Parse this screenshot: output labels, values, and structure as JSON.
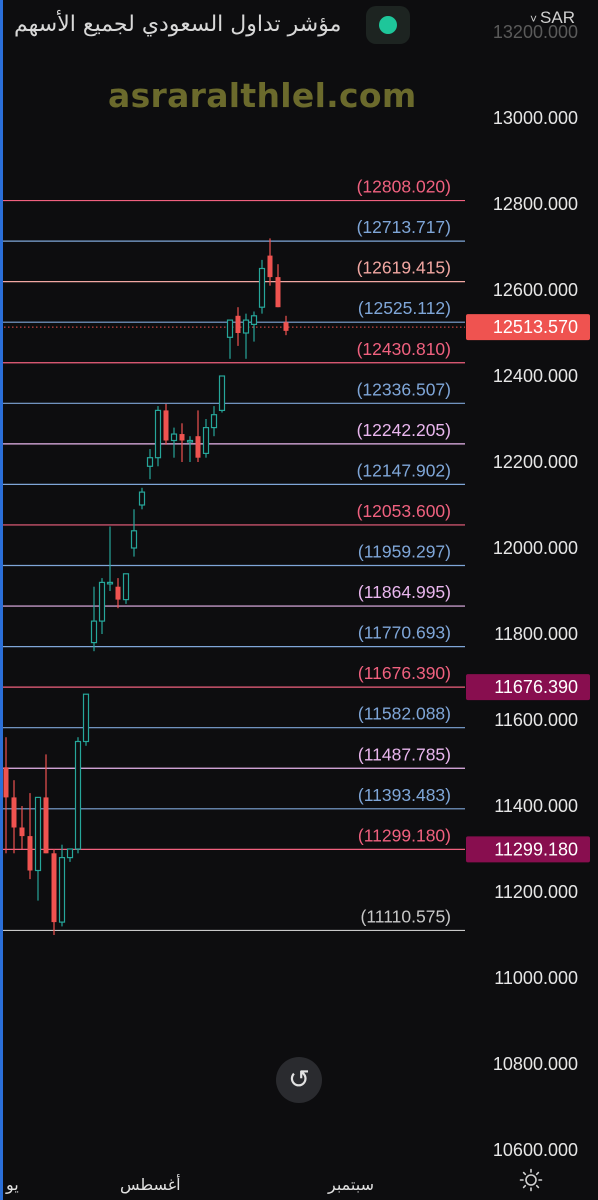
{
  "header": {
    "title": "مؤشر تداول السعودي لجميع الأسهم",
    "currency": "SAR",
    "currency_chevron": "˅",
    "status_color": "#1ec69a"
  },
  "watermark": "asraralthlel.com",
  "controls": {
    "reset_icon": "↺",
    "settings_icon": "sun-gear-icon"
  },
  "chart_data": {
    "type": "candlestick",
    "ylim": [
      10540,
      13300
    ],
    "y_ticks": [
      {
        "value": 13000,
        "label": "13000.000"
      },
      {
        "value": 12800,
        "label": "12800.000"
      },
      {
        "value": 12600,
        "label": "12600.000"
      },
      {
        "value": 12400,
        "label": "12400.000"
      },
      {
        "value": 12200,
        "label": "12200.000"
      },
      {
        "value": 12000,
        "label": "12000.000"
      },
      {
        "value": 11800,
        "label": "11800.000"
      },
      {
        "value": 11600,
        "label": "11600.000"
      },
      {
        "value": 11400,
        "label": "11400.000"
      },
      {
        "value": 11200,
        "label": "11200.000"
      },
      {
        "value": 11000,
        "label": "11000.000"
      },
      {
        "value": 10800,
        "label": "10800.000"
      },
      {
        "value": 10600,
        "label": "10600.000"
      }
    ],
    "top_partial_tick": {
      "value": 13200,
      "label": "13200.000"
    },
    "x_labels": [
      {
        "label": "يو",
        "position": "left-edge"
      },
      {
        "label": "أغسطس",
        "position": "early"
      },
      {
        "label": "سبتمبر",
        "position": "middle"
      }
    ],
    "fib_levels": [
      {
        "value": 12808.02,
        "label": "(12808.020)",
        "color": "#f0617f"
      },
      {
        "value": 12713.717,
        "label": "(12713.717)",
        "color": "#7fa6d8"
      },
      {
        "value": 12619.415,
        "label": "(12619.415)",
        "color": "#f2a7a2"
      },
      {
        "value": 12525.112,
        "label": "(12525.112)",
        "color": "#7fa6d8"
      },
      {
        "value": 12430.81,
        "label": "(12430.810)",
        "color": "#f0617f"
      },
      {
        "value": 12336.507,
        "label": "(12336.507)",
        "color": "#7fa6d8"
      },
      {
        "value": 12242.205,
        "label": "(12242.205)",
        "color": "#e9b6ee"
      },
      {
        "value": 12147.902,
        "label": "(12147.902)",
        "color": "#7fa6d8"
      },
      {
        "value": 12053.6,
        "label": "(12053.600)",
        "color": "#f0617f"
      },
      {
        "value": 11959.297,
        "label": "(11959.297)",
        "color": "#7fa6d8"
      },
      {
        "value": 11864.995,
        "label": "(11864.995)",
        "color": "#e9b6ee"
      },
      {
        "value": 11770.693,
        "label": "(11770.693)",
        "color": "#7fa6d8"
      },
      {
        "value": 11676.39,
        "label": "(11676.390)",
        "color": "#f0617f"
      },
      {
        "value": 11582.088,
        "label": "(11582.088)",
        "color": "#7fa6d8"
      },
      {
        "value": 11487.785,
        "label": "(11487.785)",
        "color": "#e9b6ee"
      },
      {
        "value": 11393.483,
        "label": "(11393.483)",
        "color": "#7fa6d8"
      },
      {
        "value": 11299.18,
        "label": "(11299.180)",
        "color": "#f0617f"
      },
      {
        "value": 11110.575,
        "label": "(11110.575)",
        "color": "#c8c8c8"
      }
    ],
    "price_badges": [
      {
        "value": 12513.57,
        "label": "12513.570",
        "color": "#ef5350"
      },
      {
        "value": 11676.39,
        "label": "11676.390",
        "color": "#880e4f"
      },
      {
        "value": 11299.18,
        "label": "11299.180",
        "color": "#880e4f"
      }
    ],
    "last_price": 12513.57,
    "up_color": "#26a69a",
    "down_color": "#ef5350",
    "candles": [
      {
        "o": 11490,
        "h": 11560,
        "l": 11290,
        "c": 11420
      },
      {
        "o": 11420,
        "h": 11460,
        "l": 11290,
        "c": 11350
      },
      {
        "o": 11350,
        "h": 11400,
        "l": 11300,
        "c": 11330
      },
      {
        "o": 11330,
        "h": 11430,
        "l": 11230,
        "c": 11250
      },
      {
        "o": 11250,
        "h": 11420,
        "l": 11180,
        "c": 11420
      },
      {
        "o": 11420,
        "h": 11520,
        "l": 11290,
        "c": 11290
      },
      {
        "o": 11290,
        "h": 11300,
        "l": 11100,
        "c": 11130
      },
      {
        "o": 11130,
        "h": 11310,
        "l": 11120,
        "c": 11280
      },
      {
        "o": 11280,
        "h": 11300,
        "l": 11270,
        "c": 11300
      },
      {
        "o": 11300,
        "h": 11560,
        "l": 11290,
        "c": 11550
      },
      {
        "o": 11550,
        "h": 11660,
        "l": 11540,
        "c": 11660
      },
      {
        "o": 11780,
        "h": 11910,
        "l": 11760,
        "c": 11830
      },
      {
        "o": 11830,
        "h": 11930,
        "l": 11800,
        "c": 11920
      },
      {
        "o": 11920,
        "h": 12050,
        "l": 11900,
        "c": 11920
      },
      {
        "o": 11910,
        "h": 11930,
        "l": 11860,
        "c": 11880
      },
      {
        "o": 11880,
        "h": 11940,
        "l": 11870,
        "c": 11940
      },
      {
        "o": 12000,
        "h": 12090,
        "l": 11980,
        "c": 12040
      },
      {
        "o": 12100,
        "h": 12140,
        "l": 12090,
        "c": 12130
      },
      {
        "o": 12190,
        "h": 12230,
        "l": 12160,
        "c": 12210
      },
      {
        "o": 12210,
        "h": 12330,
        "l": 12190,
        "c": 12320
      },
      {
        "o": 12320,
        "h": 12335,
        "l": 12240,
        "c": 12250
      },
      {
        "o": 12250,
        "h": 12280,
        "l": 12210,
        "c": 12265
      },
      {
        "o": 12265,
        "h": 12290,
        "l": 12200,
        "c": 12250
      },
      {
        "o": 12250,
        "h": 12260,
        "l": 12200,
        "c": 12250
      },
      {
        "o": 12260,
        "h": 12320,
        "l": 12200,
        "c": 12210
      },
      {
        "o": 12220,
        "h": 12300,
        "l": 12210,
        "c": 12280
      },
      {
        "o": 12280,
        "h": 12330,
        "l": 12260,
        "c": 12310
      },
      {
        "o": 12320,
        "h": 12400,
        "l": 12315,
        "c": 12400
      },
      {
        "o": 12490,
        "h": 12530,
        "l": 12440,
        "c": 12530
      },
      {
        "o": 12540,
        "h": 12560,
        "l": 12470,
        "c": 12500
      },
      {
        "o": 12500,
        "h": 12545,
        "l": 12440,
        "c": 12530
      },
      {
        "o": 12520,
        "h": 12550,
        "l": 12480,
        "c": 12540
      },
      {
        "o": 12560,
        "h": 12670,
        "l": 12545,
        "c": 12650
      },
      {
        "o": 12680,
        "h": 12720,
        "l": 12610,
        "c": 12630
      },
      {
        "o": 12630,
        "h": 12660,
        "l": 12560,
        "c": 12560
      },
      {
        "o": 12525,
        "h": 12540,
        "l": 12495,
        "c": 12505
      }
    ]
  }
}
